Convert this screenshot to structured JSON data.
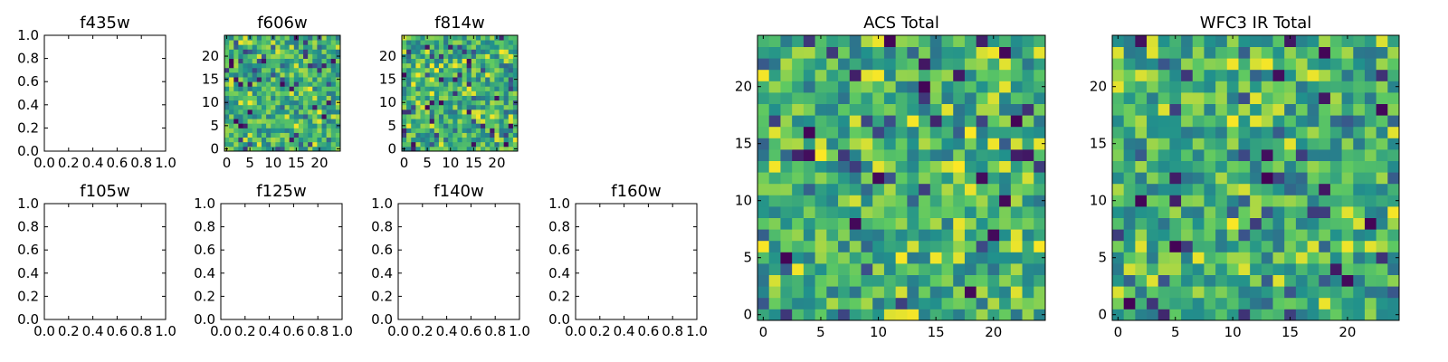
{
  "colormap": "viridis",
  "colormap_stops": [
    "#440154",
    "#3b528b",
    "#21918c",
    "#5ec962",
    "#fde725"
  ],
  "chart_data": [
    {
      "type": "heatmap",
      "title": "f435w",
      "empty": true,
      "xlim": [
        0,
        1
      ],
      "ylim": [
        0,
        1
      ],
      "xticks": [
        "0.0",
        "0.2",
        "0.4",
        "0.6",
        "0.8",
        "1.0"
      ],
      "yticks": [
        "0.0",
        "0.2",
        "0.4",
        "0.6",
        "0.8",
        "1.0"
      ]
    },
    {
      "type": "heatmap",
      "title": "f606w",
      "empty": false,
      "grid_size": 25,
      "value_range": [
        0,
        1
      ],
      "seed": 606,
      "xticks": [
        "0",
        "5",
        "10",
        "15",
        "20"
      ],
      "yticks": [
        "0",
        "5",
        "10",
        "15",
        "20"
      ]
    },
    {
      "type": "heatmap",
      "title": "f814w",
      "empty": false,
      "grid_size": 25,
      "value_range": [
        0,
        1
      ],
      "seed": 814,
      "xticks": [
        "0",
        "5",
        "10",
        "15",
        "20"
      ],
      "yticks": [
        "0",
        "5",
        "10",
        "15",
        "20"
      ]
    },
    {
      "type": "heatmap",
      "title": "f105w",
      "empty": true,
      "xlim": [
        0,
        1
      ],
      "ylim": [
        0,
        1
      ],
      "xticks": [
        "0.0",
        "0.2",
        "0.4",
        "0.6",
        "0.8",
        "1.0"
      ],
      "yticks": [
        "0.0",
        "0.2",
        "0.4",
        "0.6",
        "0.8",
        "1.0"
      ]
    },
    {
      "type": "heatmap",
      "title": "f125w",
      "empty": true,
      "xlim": [
        0,
        1
      ],
      "ylim": [
        0,
        1
      ],
      "xticks": [
        "0.0",
        "0.2",
        "0.4",
        "0.6",
        "0.8",
        "1.0"
      ],
      "yticks": [
        "0.0",
        "0.2",
        "0.4",
        "0.6",
        "0.8",
        "1.0"
      ]
    },
    {
      "type": "heatmap",
      "title": "f140w",
      "empty": true,
      "xlim": [
        0,
        1
      ],
      "ylim": [
        0,
        1
      ],
      "xticks": [
        "0.0",
        "0.2",
        "0.4",
        "0.6",
        "0.8",
        "1.0"
      ],
      "yticks": [
        "0.0",
        "0.2",
        "0.4",
        "0.6",
        "0.8",
        "1.0"
      ]
    },
    {
      "type": "heatmap",
      "title": "f160w",
      "empty": true,
      "xlim": [
        0,
        1
      ],
      "ylim": [
        0,
        1
      ],
      "xticks": [
        "0.0",
        "0.2",
        "0.4",
        "0.6",
        "0.8",
        "1.0"
      ],
      "yticks": [
        "0.0",
        "0.2",
        "0.4",
        "0.6",
        "0.8",
        "1.0"
      ]
    },
    {
      "type": "heatmap",
      "title": "ACS Total",
      "empty": false,
      "grid_size": 25,
      "value_range": [
        0,
        1
      ],
      "seed": 2025,
      "xticks": [
        "0",
        "5",
        "10",
        "15",
        "20"
      ],
      "yticks": [
        "0",
        "5",
        "10",
        "15",
        "20"
      ]
    },
    {
      "type": "heatmap",
      "title": "WFC3 IR Total",
      "empty": false,
      "grid_size": 25,
      "value_range": [
        0,
        1
      ],
      "seed": 3160,
      "xticks": [
        "0",
        "5",
        "10",
        "15",
        "20"
      ],
      "yticks": [
        "0",
        "5",
        "10",
        "15",
        "20"
      ]
    }
  ]
}
